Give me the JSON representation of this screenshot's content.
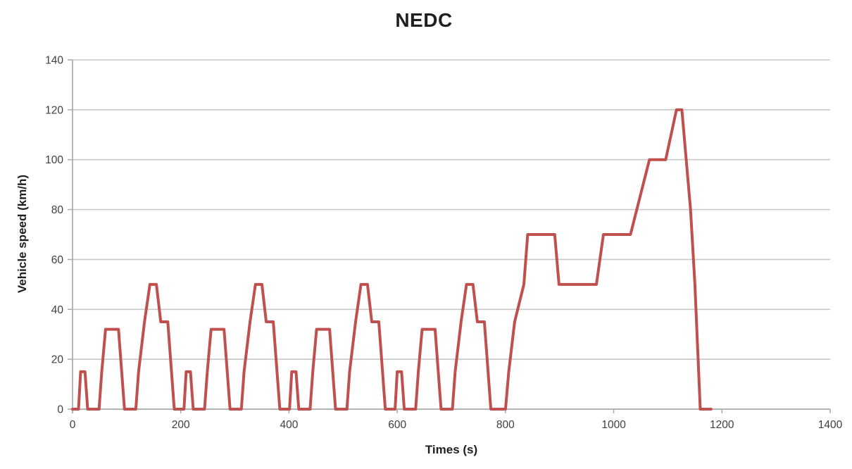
{
  "chart_data": {
    "type": "line",
    "title": "NEDC",
    "xlabel": "Times (s)",
    "ylabel": "Vehicle speed (km/h)",
    "xlim": [
      0,
      1400
    ],
    "ylim": [
      0,
      140
    ],
    "xticks": [
      0,
      200,
      400,
      600,
      800,
      1000,
      1200,
      1400
    ],
    "yticks": [
      0,
      20,
      40,
      60,
      80,
      100,
      120,
      140
    ],
    "grid": "horizontal-only",
    "legend_position": "none",
    "colors": {
      "line": "#C0504D",
      "gridline": "#C8C8C8",
      "axis": "#A9A9A9",
      "tick_label": "#3F3F3F",
      "title": "#1F1F1F"
    },
    "series": [
      {
        "name": "NEDC",
        "points": [
          [
            0,
            0
          ],
          [
            11,
            0
          ],
          [
            15,
            15
          ],
          [
            23,
            15
          ],
          [
            28,
            0
          ],
          [
            49,
            0
          ],
          [
            54,
            15
          ],
          [
            61,
            32
          ],
          [
            85,
            32
          ],
          [
            96,
            0
          ],
          [
            117,
            0
          ],
          [
            122,
            15
          ],
          [
            133,
            35
          ],
          [
            143,
            50
          ],
          [
            155,
            50
          ],
          [
            163,
            35
          ],
          [
            176,
            35
          ],
          [
            188,
            0
          ],
          [
            195,
            0
          ],
          [
            206,
            0
          ],
          [
            210,
            15
          ],
          [
            218,
            15
          ],
          [
            223,
            0
          ],
          [
            244,
            0
          ],
          [
            249,
            15
          ],
          [
            256,
            32
          ],
          [
            280,
            32
          ],
          [
            291,
            0
          ],
          [
            312,
            0
          ],
          [
            317,
            15
          ],
          [
            328,
            35
          ],
          [
            338,
            50
          ],
          [
            350,
            50
          ],
          [
            358,
            35
          ],
          [
            371,
            35
          ],
          [
            383,
            0
          ],
          [
            390,
            0
          ],
          [
            401,
            0
          ],
          [
            405,
            15
          ],
          [
            413,
            15
          ],
          [
            418,
            0
          ],
          [
            439,
            0
          ],
          [
            444,
            15
          ],
          [
            451,
            32
          ],
          [
            475,
            32
          ],
          [
            486,
            0
          ],
          [
            507,
            0
          ],
          [
            512,
            15
          ],
          [
            523,
            35
          ],
          [
            533,
            50
          ],
          [
            545,
            50
          ],
          [
            553,
            35
          ],
          [
            566,
            35
          ],
          [
            578,
            0
          ],
          [
            585,
            0
          ],
          [
            596,
            0
          ],
          [
            600,
            15
          ],
          [
            608,
            15
          ],
          [
            613,
            0
          ],
          [
            634,
            0
          ],
          [
            639,
            15
          ],
          [
            646,
            32
          ],
          [
            670,
            32
          ],
          [
            681,
            0
          ],
          [
            702,
            0
          ],
          [
            707,
            15
          ],
          [
            718,
            35
          ],
          [
            728,
            50
          ],
          [
            740,
            50
          ],
          [
            748,
            35
          ],
          [
            761,
            35
          ],
          [
            773,
            0
          ],
          [
            780,
            0
          ],
          [
            800,
            0
          ],
          [
            806,
            15
          ],
          [
            817,
            35
          ],
          [
            834,
            50
          ],
          [
            841,
            70
          ],
          [
            891,
            70
          ],
          [
            899,
            50
          ],
          [
            968,
            50
          ],
          [
            981,
            70
          ],
          [
            1031,
            70
          ],
          [
            1066,
            100
          ],
          [
            1096,
            100
          ],
          [
            1116,
            120
          ],
          [
            1126,
            120
          ],
          [
            1142,
            80
          ],
          [
            1150,
            50
          ],
          [
            1160,
            0
          ],
          [
            1180,
            0
          ]
        ]
      }
    ]
  }
}
